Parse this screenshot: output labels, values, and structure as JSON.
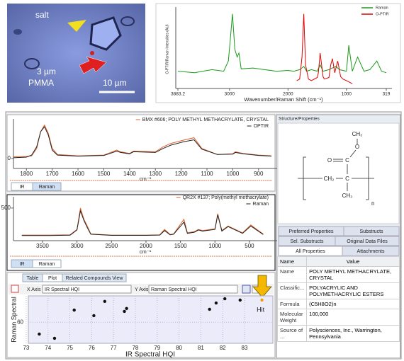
{
  "image": {
    "labels": [
      "salt",
      "3 µm",
      "PMMA",
      "10 µm"
    ]
  },
  "chart_data": [
    {
      "type": "line",
      "x_label": "Wavenumber/Raman Shift (cm⁻¹)",
      "y_label": "O-PTIR/Raman Intensities (AU)",
      "xlim": [
        3883.2,
        319
      ],
      "ylim": [
        0,
        100
      ],
      "xticks": [
        3883.2,
        3000,
        2000,
        1000,
        319
      ],
      "yticks": [],
      "legend": "upper right",
      "series": [
        {
          "name": "Raman",
          "color": "#1a9a1a",
          "x": [
            3883,
            3600,
            3300,
            3100,
            3020,
            2990,
            2950,
            2910,
            2870,
            2840,
            2800,
            2600,
            2400,
            2200,
            2000,
            1900,
            1800,
            1730,
            1680,
            1600,
            1500,
            1450,
            1400,
            1300,
            1240,
            1180,
            1120,
            1000,
            960,
            900,
            810,
            700,
            600,
            480,
            400,
            319
          ],
          "values": [
            22,
            20,
            24,
            22,
            35,
            60,
            95,
            50,
            40,
            45,
            25,
            26,
            24,
            22,
            23,
            22,
            24,
            28,
            22,
            24,
            22,
            30,
            22,
            24,
            26,
            28,
            24,
            22,
            55,
            22,
            40,
            22,
            24,
            35,
            22,
            20
          ]
        },
        {
          "name": "O-PTIR",
          "color": "#e00000",
          "x": [
            1850,
            1800,
            1760,
            1730,
            1700,
            1650,
            1600,
            1500,
            1480,
            1450,
            1400,
            1380,
            1300,
            1270,
            1240,
            1200,
            1150,
            1100,
            1060,
            1000,
            950,
            900
          ],
          "values": [
            10,
            12,
            40,
            95,
            30,
            12,
            10,
            14,
            20,
            45,
            15,
            12,
            14,
            30,
            38,
            20,
            35,
            15,
            12,
            10,
            8,
            6
          ]
        }
      ]
    },
    {
      "type": "line",
      "x_label": "cm⁻¹",
      "xlim": [
        1842,
        850
      ],
      "ylim": [
        -0.3,
        1.1
      ],
      "xticks": [
        1800,
        1700,
        1600,
        1500,
        1400,
        1300,
        1200,
        1100,
        1000,
        900
      ],
      "yticks": [
        0
      ],
      "legend": "upper right",
      "series": [
        {
          "name": "BMX #606; POLY METHYL METHACRYLATE, CRYSTAL",
          "color": "#e0602a",
          "x": [
            1850,
            1800,
            1780,
            1760,
            1745,
            1730,
            1715,
            1700,
            1680,
            1600,
            1500,
            1480,
            1450,
            1435,
            1400,
            1385,
            1300,
            1270,
            1240,
            1190,
            1150,
            1120,
            1060,
            1000,
            990,
            960,
            900,
            850
          ],
          "values": [
            0.05,
            0.06,
            0.08,
            0.3,
            0.8,
            1.0,
            0.75,
            0.3,
            0.12,
            0.08,
            0.1,
            0.16,
            0.25,
            0.2,
            0.15,
            0.22,
            0.2,
            0.35,
            0.45,
            0.55,
            0.62,
            0.3,
            0.12,
            0.14,
            0.2,
            0.15,
            0.1,
            0.08
          ]
        },
        {
          "name": "OPTIR",
          "color": "#222222",
          "x": [
            1850,
            1800,
            1780,
            1760,
            1745,
            1730,
            1715,
            1700,
            1680,
            1600,
            1500,
            1480,
            1450,
            1435,
            1400,
            1385,
            1300,
            1270,
            1240,
            1190,
            1150,
            1120,
            1060,
            1000,
            990,
            960,
            900,
            850
          ],
          "values": [
            0.02,
            0.04,
            0.1,
            0.35,
            0.8,
            0.95,
            0.7,
            0.25,
            0.1,
            0.07,
            0.09,
            0.14,
            0.22,
            0.18,
            0.14,
            0.2,
            0.18,
            0.3,
            0.4,
            0.5,
            0.56,
            0.28,
            0.12,
            0.13,
            0.18,
            0.14,
            0.09,
            0.07
          ]
        }
      ]
    },
    {
      "type": "line",
      "x_label": "cm⁻¹",
      "xlim": [
        3890,
        181
      ],
      "ylim": [
        -80,
        650
      ],
      "xticks": [
        3500,
        3000,
        2500,
        2000,
        1500,
        1000,
        500
      ],
      "yticks": [
        500
      ],
      "legend": "upper right",
      "series": [
        {
          "name": "QR2X #137; Poly(methyl methacrylate)",
          "color": "#e0602a",
          "x": [
            3800,
            3400,
            3100,
            3000,
            2950,
            2900,
            2850,
            2800,
            2500,
            2000,
            1800,
            1730,
            1650,
            1600,
            1450,
            1400,
            1300,
            1240,
            1180,
            1000,
            960,
            900,
            810,
            600,
            480,
            360,
            300
          ],
          "values": [
            20,
            20,
            25,
            120,
            500,
            300,
            180,
            40,
            20,
            20,
            25,
            120,
            30,
            40,
            300,
            60,
            80,
            120,
            100,
            130,
            400,
            100,
            180,
            60,
            200,
            90,
            40
          ]
        },
        {
          "name": "Raman",
          "color": "#222222",
          "x": [
            3800,
            3400,
            3100,
            3000,
            2950,
            2900,
            2850,
            2800,
            2500,
            2000,
            1800,
            1730,
            1650,
            1600,
            1450,
            1400,
            1300,
            1240,
            1180,
            1000,
            960,
            900,
            810,
            600,
            480,
            360,
            300
          ],
          "values": [
            10,
            12,
            18,
            110,
            450,
            280,
            150,
            35,
            15,
            15,
            20,
            100,
            25,
            35,
            250,
            50,
            70,
            110,
            90,
            120,
            380,
            90,
            170,
            50,
            180,
            80,
            30
          ]
        }
      ]
    },
    {
      "type": "scatter",
      "x_label": "IR Spectral HQI",
      "y_label": "Raman Spectral",
      "annotation": "Hit",
      "xlim": [
        73.1,
        84.3
      ],
      "ylim": [
        52,
        70
      ],
      "xticks": [
        73,
        74,
        75,
        76,
        77,
        78,
        79,
        80,
        81,
        82,
        83
      ],
      "yticks": [
        60
      ],
      "grid": true,
      "x": [
        73.6,
        74.3,
        75.2,
        76.1,
        76.6,
        77.5,
        77.6,
        81.4,
        81.7,
        82.1,
        82.8,
        83.8
      ],
      "values": [
        55.5,
        53.9,
        64.6,
        62.5,
        67.9,
        64.1,
        65.2,
        64.9,
        67.3,
        68.9,
        68.4,
        68.4
      ],
      "point_colors": [
        "#111",
        "#111",
        "#111",
        "#111",
        "#111",
        "#111",
        "#111",
        "#111",
        "#111",
        "#111",
        "#111",
        "#f0a000"
      ]
    }
  ],
  "panels": {
    "spectrum_tabs": [
      "IR",
      "Raman"
    ],
    "view_tabs": [
      "Table",
      "Plot",
      "Related Compounds View"
    ],
    "x_axis_label": "X Axis",
    "x_axis_value": "IR Spectral HQI",
    "y_axis_label": "Y Axis",
    "y_axis_value": "Raman Spectral HQI"
  },
  "properties": {
    "header": "Structure/Properties",
    "structure_labels": [
      "CH₃",
      "O",
      "O",
      "C",
      "CH₂",
      "C",
      "CH₃",
      "n"
    ],
    "tabs": [
      "Preferred Properties",
      "Substructs",
      "Sel. Substructs",
      "Original Data Files",
      "All Properties",
      "Attachments"
    ],
    "columns": [
      "Name",
      "Value"
    ],
    "rows": [
      [
        "Name",
        "POLY METHYL METHACRYLATE, CRYSTAL"
      ],
      [
        "Classific...",
        "POLYACRYLIC AND POLYMETHACRYLIC ESTERS"
      ],
      [
        "Formula",
        "(C5H8O2)n"
      ],
      [
        "Molecular Weight",
        "100,000"
      ],
      [
        "Source of ...",
        "Polysciences, Inc., Warrington, Pennsylvania"
      ]
    ]
  }
}
